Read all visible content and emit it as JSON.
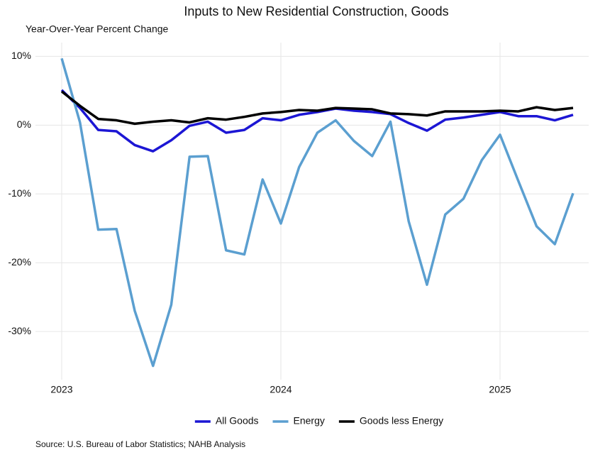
{
  "chart_data": {
    "type": "line",
    "title": "Inputs to New Residential Construction, Goods",
    "subtitle": "Year-Over-Year Percent Change",
    "source": "Source: U.S. Bureau of Labor Statistics; NAHB Analysis",
    "categories": [
      "2023",
      null,
      null,
      null,
      null,
      null,
      null,
      null,
      null,
      null,
      null,
      null,
      "2024",
      null,
      null,
      null,
      null,
      null,
      null,
      null,
      null,
      null,
      null,
      null,
      "2025",
      null,
      null,
      null,
      null
    ],
    "series": [
      {
        "name": "All Goods",
        "color": "#1c16d4",
        "values": [
          5.1,
          2.5,
          -0.7,
          -0.9,
          -2.9,
          -3.8,
          -2.2,
          -0.1,
          0.5,
          -1.1,
          -0.7,
          1.0,
          0.7,
          1.5,
          1.9,
          2.4,
          2.1,
          1.9,
          1.6,
          0.3,
          -0.8,
          0.8,
          1.1,
          1.5,
          1.9,
          1.3,
          1.3,
          0.7,
          1.5
        ]
      },
      {
        "name": "Energy",
        "color": "#5b9fd0",
        "values": [
          9.7,
          0.4,
          -15.2,
          -15.1,
          -27.0,
          -35.0,
          -26.1,
          -4.6,
          -4.5,
          -18.2,
          -18.8,
          -7.9,
          -14.3,
          -6.1,
          -1.1,
          0.7,
          -2.3,
          -4.5,
          0.5,
          -14.0,
          -23.2,
          -13.0,
          -10.7,
          -5.1,
          -1.4,
          -8.1,
          -14.7,
          -17.3,
          -9.9
        ]
      },
      {
        "name": "Goods less Energy",
        "color": "#000000",
        "values": [
          4.9,
          2.8,
          0.9,
          0.7,
          0.2,
          0.5,
          0.7,
          0.4,
          1.0,
          0.8,
          1.2,
          1.7,
          1.9,
          2.2,
          2.1,
          2.5,
          2.4,
          2.3,
          1.7,
          1.6,
          1.4,
          2.0,
          2.0,
          2.0,
          2.1,
          2.0,
          2.6,
          2.2,
          2.5
        ]
      }
    ],
    "ylim": [
      -37,
      12
    ],
    "yticks": [
      {
        "value": -30,
        "label": "-30%"
      },
      {
        "value": -20,
        "label": "-20%"
      },
      {
        "value": -10,
        "label": "-10%"
      },
      {
        "value": 0,
        "label": "0%"
      },
      {
        "value": 10,
        "label": "10%"
      }
    ],
    "grid": true,
    "legend": "bottom"
  }
}
